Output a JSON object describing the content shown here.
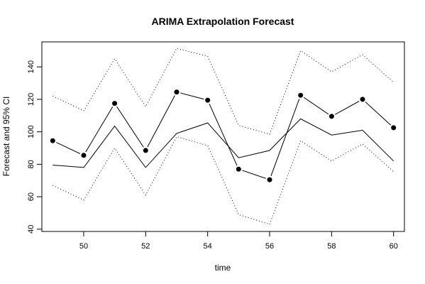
{
  "chart_data": {
    "type": "line",
    "title": "ARIMA Extrapolation Forecast",
    "xlabel": "time",
    "ylabel": "Forecast and 95% CI",
    "xlim": [
      48.65,
      60.35
    ],
    "ylim": [
      38.6,
      155.4
    ],
    "x_ticks": [
      50,
      52,
      54,
      56,
      58,
      60
    ],
    "y_ticks": [
      40,
      60,
      80,
      100,
      120,
      140
    ],
    "x": [
      49,
      50,
      51,
      52,
      53,
      54,
      55,
      56,
      57,
      58,
      59,
      60
    ],
    "series": [
      {
        "style": "points-connected",
        "values": [
          94.5,
          85.5,
          117.5,
          88.5,
          124.5,
          119.5,
          77,
          70.5,
          122.5,
          109.5,
          120,
          102.5
        ]
      },
      {
        "style": "solid",
        "values": [
          79.5,
          78,
          103.5,
          78,
          99,
          105.5,
          84,
          88.5,
          108,
          98,
          101,
          82
        ]
      },
      {
        "style": "dotted",
        "values": [
          122,
          113,
          145,
          115.5,
          151.5,
          146.5,
          104,
          98.5,
          150,
          137,
          147.5,
          130.5
        ]
      },
      {
        "style": "dotted",
        "values": [
          67,
          58,
          90,
          61,
          97,
          91.5,
          49,
          43,
          94.5,
          82,
          92.5,
          75.5
        ]
      }
    ],
    "grid": false,
    "legend": "none"
  }
}
